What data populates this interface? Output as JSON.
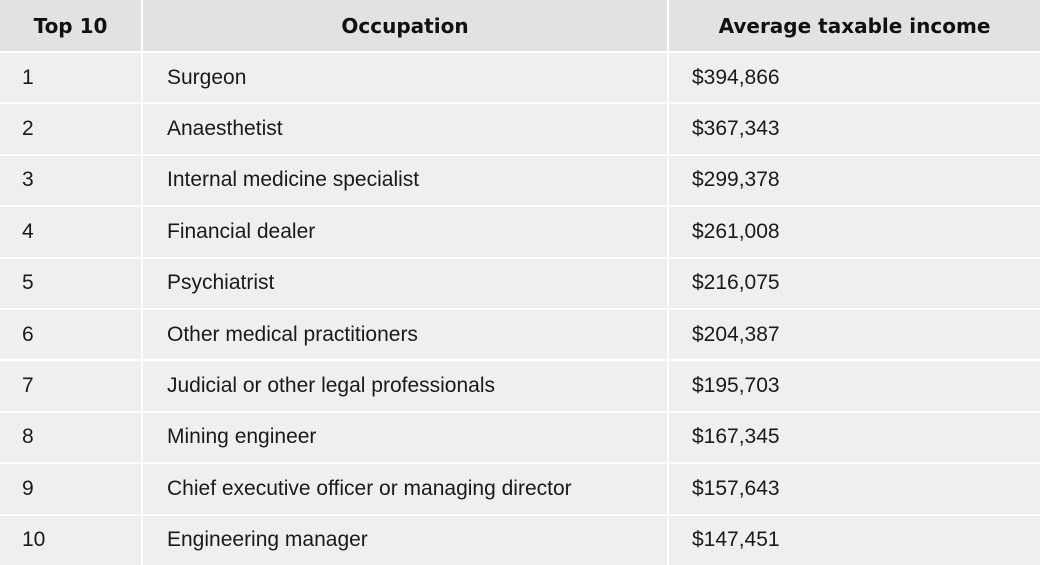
{
  "table": {
    "columns": [
      "Top 10",
      "Occupation",
      "Average taxable income"
    ],
    "rows": [
      [
        "1",
        "Surgeon",
        "$394,866"
      ],
      [
        "2",
        "Anaesthetist",
        "$367,343"
      ],
      [
        "3",
        "Internal medicine specialist",
        "$299,378"
      ],
      [
        "4",
        "Financial dealer",
        "$261,008"
      ],
      [
        "5",
        "Psychiatrist",
        "$216,075"
      ],
      [
        "6",
        "Other medical practitioners",
        "$204,387"
      ],
      [
        "7",
        "Judicial or other legal professionals",
        "$195,703"
      ],
      [
        "8",
        "Mining engineer",
        "$167,345"
      ],
      [
        "9",
        "Chief executive officer or managing director",
        "$157,643"
      ],
      [
        "10",
        "Engineering manager",
        "$147,451"
      ]
    ]
  }
}
